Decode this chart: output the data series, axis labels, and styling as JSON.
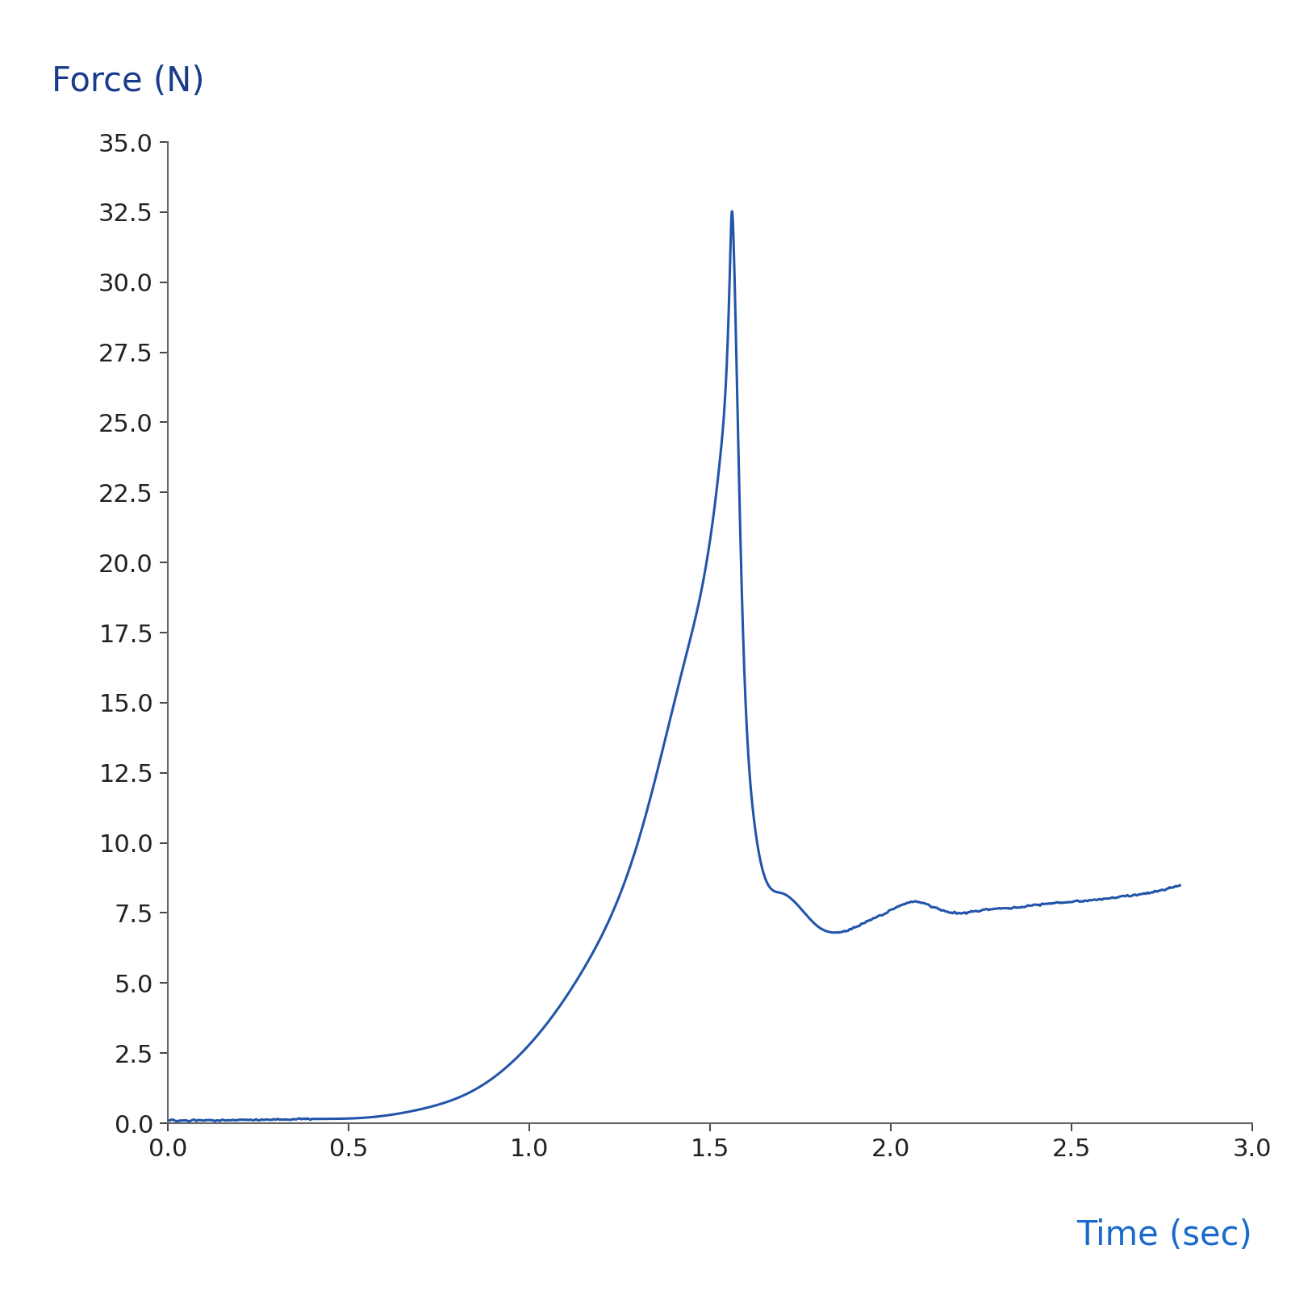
{
  "ylabel": "Force (N)",
  "xlabel": "Time (sec)",
  "ylabel_color": "#1a3a8a",
  "xlabel_color": "#1a6acc",
  "line_color": "#2255aa",
  "ylim": [
    0.0,
    35.0
  ],
  "xlim": [
    0.0,
    3.0
  ],
  "yticks": [
    0.0,
    2.5,
    5.0,
    7.5,
    10.0,
    12.5,
    15.0,
    17.5,
    20.0,
    22.5,
    25.0,
    27.5,
    30.0,
    32.5,
    35.0
  ],
  "xticks": [
    0.0,
    0.5,
    1.0,
    1.5,
    2.0,
    2.5,
    3.0
  ],
  "tick_color": "#222222",
  "axis_color": "#666666",
  "ylabel_fontsize": 30,
  "xlabel_fontsize": 30,
  "tick_fontsize": 22,
  "line_width": 2.2,
  "background_color": "#ffffff"
}
